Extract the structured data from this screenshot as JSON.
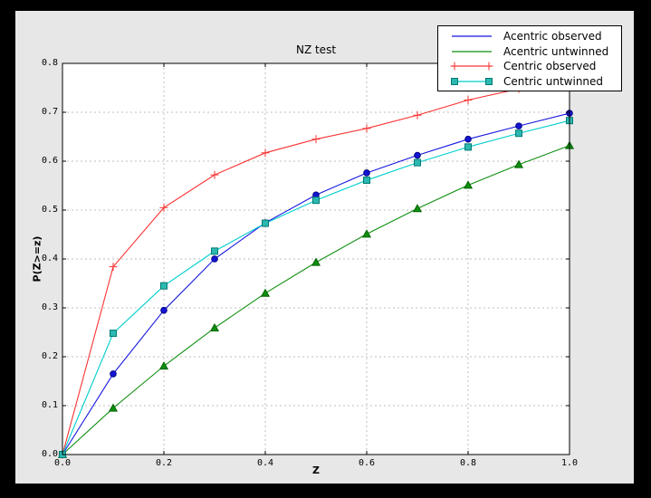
{
  "window": {
    "outer_bg": "#000000",
    "figure_bg": "#e7e7e7",
    "plot_bg": "#ffffff",
    "grid_color": "#bfbfbf",
    "axis_color": "#000000"
  },
  "chart_data": {
    "type": "line",
    "title": "NZ test",
    "xlabel": "Z",
    "ylabel": "P(Z>=z)",
    "xlim": [
      0.0,
      1.0
    ],
    "ylim": [
      0.0,
      0.8
    ],
    "grid": true,
    "legend_position": "upper right",
    "x_ticks": [
      0.0,
      0.2,
      0.4,
      0.6,
      0.8,
      1.0
    ],
    "x_tick_labels": [
      "0.0",
      "0.2",
      "0.4",
      "0.6",
      "0.8",
      "1.0"
    ],
    "y_ticks": [
      0.0,
      0.1,
      0.2,
      0.3,
      0.4,
      0.5,
      0.6,
      0.7,
      0.8
    ],
    "y_tick_labels": [
      "0.0",
      "0.1",
      "0.2",
      "0.3",
      "0.4",
      "0.5",
      "0.6",
      "0.7",
      "0.8"
    ],
    "x": [
      0.0,
      0.1,
      0.2,
      0.3,
      0.4,
      0.5,
      0.6,
      0.7,
      0.8,
      0.9,
      1.0
    ],
    "series": [
      {
        "name": "Acentric observed",
        "color": "#1515e0",
        "marker": "circle",
        "marker_fill": "#1515d6",
        "marker_edge": "#000080",
        "legend_marker": false,
        "values": [
          0.0,
          0.165,
          0.295,
          0.4,
          0.474,
          0.531,
          0.576,
          0.612,
          0.645,
          0.672,
          0.698
        ]
      },
      {
        "name": "Acentric untwinned",
        "color": "#0f8f0f",
        "marker": "triangle",
        "marker_fill": "#0f8f0f",
        "marker_edge": "#006400",
        "legend_marker": false,
        "values": [
          0.0,
          0.095,
          0.181,
          0.259,
          0.33,
          0.393,
          0.451,
          0.503,
          0.551,
          0.593,
          0.632
        ]
      },
      {
        "name": "Centric observed",
        "color": "#fa3232",
        "marker": "plus",
        "marker_fill": "#fa3232",
        "marker_edge": "#fa3232",
        "legend_marker": true,
        "values": [
          0.0,
          0.384,
          0.505,
          0.572,
          0.617,
          0.645,
          0.667,
          0.694,
          0.725,
          0.748,
          0.77
        ]
      },
      {
        "name": "Centric untwinned",
        "color": "#00cdcd",
        "marker": "square",
        "marker_fill": "#2cb8b0",
        "marker_edge": "#007a72",
        "legend_marker": true,
        "values": [
          0.0,
          0.248,
          0.345,
          0.416,
          0.473,
          0.52,
          0.561,
          0.597,
          0.629,
          0.657,
          0.683
        ]
      }
    ]
  }
}
